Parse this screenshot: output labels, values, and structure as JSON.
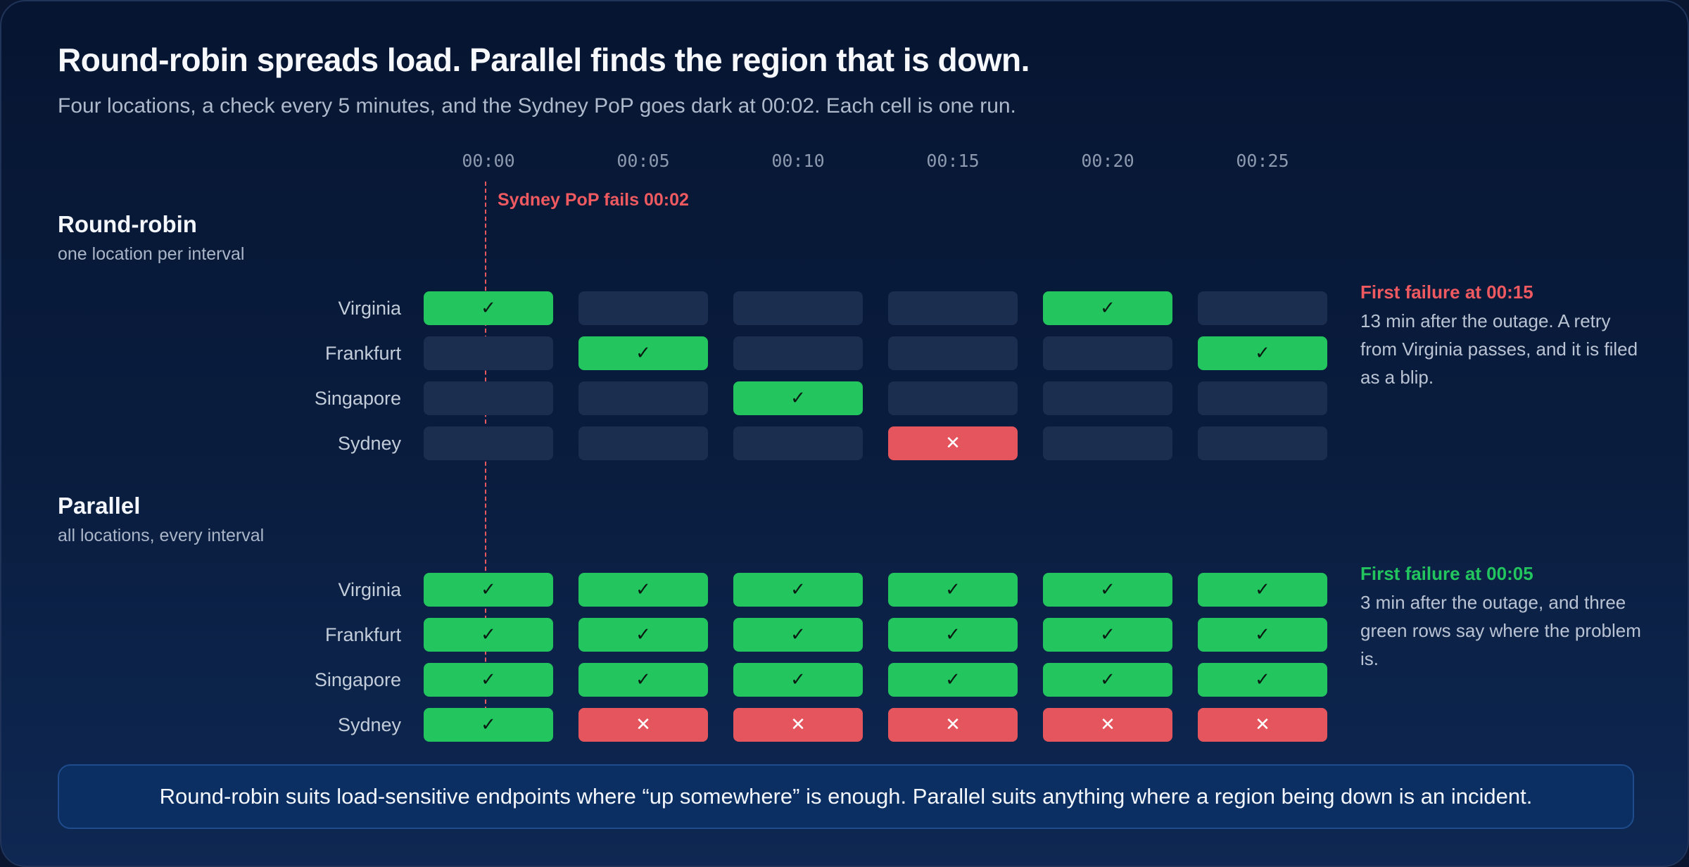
{
  "title": "Round-robin spreads load. Parallel finds the region that is down.",
  "subtitle": "Four locations, a check every 5 minutes, and the Sydney PoP goes dark at 00:02. Each cell is one run.",
  "timeline": {
    "labels": [
      "00:00",
      "00:05",
      "00:10",
      "00:15",
      "00:20",
      "00:25"
    ],
    "outage_label": "Sydney PoP fails 00:02"
  },
  "icons": {
    "pass": "check-icon",
    "fail": "cross-icon"
  },
  "glyphs": {
    "pass": "✓",
    "fail": "✕"
  },
  "colors": {
    "pass": "#22c55e",
    "fail": "#e5555d",
    "empty": "#1c2e50",
    "outage_line": "#e8585f",
    "footer_bg": "#0b2f63"
  },
  "sections": [
    {
      "id": "round-robin",
      "title": "Round-robin",
      "subtitle": "one location per interval",
      "rows": [
        {
          "label": "Virginia",
          "cells": [
            "pass",
            "empty",
            "empty",
            "empty",
            "pass",
            "empty"
          ]
        },
        {
          "label": "Frankfurt",
          "cells": [
            "empty",
            "pass",
            "empty",
            "empty",
            "empty",
            "pass"
          ]
        },
        {
          "label": "Singapore",
          "cells": [
            "empty",
            "empty",
            "pass",
            "empty",
            "empty",
            "empty"
          ]
        },
        {
          "label": "Sydney",
          "cells": [
            "empty",
            "empty",
            "empty",
            "fail",
            "empty",
            "empty"
          ]
        }
      ],
      "note": {
        "headline": "First failure at 00:15",
        "headline_color": "#ee5a60",
        "body": "13 min after the outage. A retry from Virginia passes, and it is filed as a blip."
      }
    },
    {
      "id": "parallel",
      "title": "Parallel",
      "subtitle": "all locations, every interval",
      "rows": [
        {
          "label": "Virginia",
          "cells": [
            "pass",
            "pass",
            "pass",
            "pass",
            "pass",
            "pass"
          ]
        },
        {
          "label": "Frankfurt",
          "cells": [
            "pass",
            "pass",
            "pass",
            "pass",
            "pass",
            "pass"
          ]
        },
        {
          "label": "Singapore",
          "cells": [
            "pass",
            "pass",
            "pass",
            "pass",
            "pass",
            "pass"
          ]
        },
        {
          "label": "Sydney",
          "cells": [
            "pass",
            "fail",
            "fail",
            "fail",
            "fail",
            "fail"
          ]
        }
      ],
      "note": {
        "headline": "First failure at 00:05",
        "headline_color": "#22c55e",
        "body": "3 min after the outage, and three green rows say where the problem is."
      }
    }
  ],
  "footer": "Round-robin suits load-sensitive endpoints where “up somewhere” is enough. Parallel suits anything where a region being down is an incident."
}
